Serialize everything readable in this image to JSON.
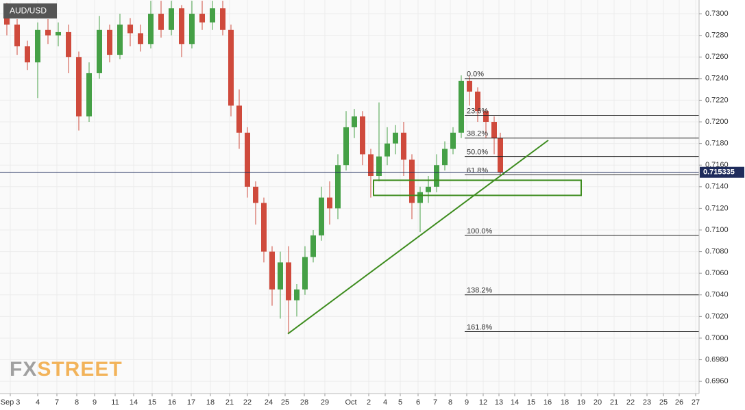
{
  "chart_data": {
    "type": "candlestick",
    "title": "AUD/USD",
    "watermark": [
      "FX",
      "STREET"
    ],
    "xlim": [
      0,
      51
    ],
    "ylim": [
      0.69487,
      0.73127
    ],
    "grid": true,
    "xticks": [
      {
        "value": 0.75,
        "label": "Sep 3"
      },
      {
        "value": 2.75,
        "label": "4"
      },
      {
        "value": 4.15,
        "label": "7"
      },
      {
        "value": 5.6,
        "label": "8"
      },
      {
        "value": 6.9,
        "label": "9"
      },
      {
        "value": 8.4,
        "label": "11"
      },
      {
        "value": 9.75,
        "label": "14"
      },
      {
        "value": 11.1,
        "label": "15"
      },
      {
        "value": 12.55,
        "label": "16"
      },
      {
        "value": 13.95,
        "label": "17"
      },
      {
        "value": 15.35,
        "label": "18"
      },
      {
        "value": 16.75,
        "label": "21"
      },
      {
        "value": 18.05,
        "label": "22"
      },
      {
        "value": 19.6,
        "label": "24"
      },
      {
        "value": 20.8,
        "label": "25"
      },
      {
        "value": 22.2,
        "label": "28"
      },
      {
        "value": 23.7,
        "label": "29"
      },
      {
        "value": 25.6,
        "label": "Oct"
      },
      {
        "value": 26.9,
        "label": "2"
      },
      {
        "value": 28.1,
        "label": "4"
      },
      {
        "value": 29.2,
        "label": "5"
      },
      {
        "value": 30.5,
        "label": "6"
      },
      {
        "value": 31.75,
        "label": "7"
      },
      {
        "value": 32.85,
        "label": "8"
      },
      {
        "value": 34.05,
        "label": "9"
      },
      {
        "value": 35.25,
        "label": "12"
      },
      {
        "value": 36.4,
        "label": "13"
      },
      {
        "value": 37.55,
        "label": "14"
      },
      {
        "value": 38.75,
        "label": "15"
      },
      {
        "value": 39.95,
        "label": "16"
      },
      {
        "value": 41.2,
        "label": "18"
      },
      {
        "value": 42.4,
        "label": "19"
      },
      {
        "value": 43.6,
        "label": "20"
      },
      {
        "value": 44.8,
        "label": "21"
      },
      {
        "value": 46,
        "label": "22"
      },
      {
        "value": 47.2,
        "label": "23"
      },
      {
        "value": 48.4,
        "label": "25"
      },
      {
        "value": 49.55,
        "label": "26"
      },
      {
        "value": 50.75,
        "label": "27"
      }
    ],
    "yticks": [
      {
        "value": 0.696,
        "label": "0.6960"
      },
      {
        "value": 0.698,
        "label": "0.6980"
      },
      {
        "value": 0.7,
        "label": "0.7000"
      },
      {
        "value": 0.702,
        "label": "0.7020"
      },
      {
        "value": 0.704,
        "label": "0.7040"
      },
      {
        "value": 0.706,
        "label": "0.7060"
      },
      {
        "value": 0.708,
        "label": "0.7080"
      },
      {
        "value": 0.71,
        "label": "0.7100"
      },
      {
        "value": 0.712,
        "label": "0.7120"
      },
      {
        "value": 0.714,
        "label": "0.7140"
      },
      {
        "value": 0.716,
        "label": "0.7160"
      },
      {
        "value": 0.718,
        "label": "0.7180"
      },
      {
        "value": 0.72,
        "label": "0.7200"
      },
      {
        "value": 0.722,
        "label": "0.7220"
      },
      {
        "value": 0.724,
        "label": "0.7240"
      },
      {
        "value": 0.726,
        "label": "0.7260"
      },
      {
        "value": 0.728,
        "label": "0.7280"
      },
      {
        "value": 0.73,
        "label": "0.7300"
      }
    ],
    "up_color": "#45a046",
    "down_color": "#cf4a3c",
    "candles": {
      "x": [
        0.5,
        1.25,
        2,
        2.75,
        3.5,
        4.25,
        5,
        5.75,
        6.5,
        7.25,
        8,
        8.75,
        9.5,
        10.25,
        11,
        11.75,
        12.5,
        13.25,
        14,
        14.75,
        15.5,
        16.25,
        16.85,
        17.45,
        18.05,
        18.65,
        19.25,
        19.85,
        20.45,
        21.05,
        21.65,
        22.25,
        22.85,
        23.45,
        24.05,
        24.65,
        25.25,
        25.85,
        26.45,
        27.05,
        27.65,
        28.25,
        28.85,
        29.45,
        30.05,
        30.65,
        31.25,
        31.85,
        32.45,
        33.05,
        33.65,
        34.25,
        34.85,
        35.45,
        36.05,
        36.5
      ],
      "open": [
        0.73,
        0.729,
        0.727,
        0.7255,
        0.7285,
        0.728,
        0.7283,
        0.726,
        0.7205,
        0.7245,
        0.7285,
        0.7262,
        0.729,
        0.7282,
        0.7272,
        0.73,
        0.7285,
        0.7305,
        0.7272,
        0.73,
        0.7292,
        0.7305,
        0.7285,
        0.7215,
        0.719,
        0.714,
        0.7125,
        0.708,
        0.7045,
        0.707,
        0.7035,
        0.7045,
        0.7075,
        0.7095,
        0.713,
        0.712,
        0.716,
        0.7195,
        0.7205,
        0.717,
        0.715,
        0.7168,
        0.718,
        0.719,
        0.7165,
        0.7125,
        0.7135,
        0.714,
        0.716,
        0.7175,
        0.719,
        0.7238,
        0.7228,
        0.721,
        0.72,
        0.7185
      ],
      "high": [
        0.731,
        0.7295,
        0.7275,
        0.7292,
        0.7295,
        0.7292,
        0.729,
        0.7265,
        0.7255,
        0.7298,
        0.729,
        0.73,
        0.7296,
        0.729,
        0.7312,
        0.7312,
        0.7312,
        0.7308,
        0.7312,
        0.7312,
        0.7312,
        0.7312,
        0.729,
        0.723,
        0.7195,
        0.7145,
        0.713,
        0.7085,
        0.708,
        0.7085,
        0.705,
        0.7085,
        0.71,
        0.714,
        0.7145,
        0.717,
        0.721,
        0.7212,
        0.721,
        0.7175,
        0.7218,
        0.7195,
        0.7197,
        0.72,
        0.717,
        0.714,
        0.715,
        0.717,
        0.7182,
        0.7195,
        0.7243,
        0.7242,
        0.7232,
        0.7212,
        0.7205,
        0.719
      ],
      "low": [
        0.728,
        0.7262,
        0.7248,
        0.7222,
        0.7272,
        0.727,
        0.7245,
        0.7192,
        0.72,
        0.724,
        0.7255,
        0.7258,
        0.727,
        0.7265,
        0.7268,
        0.7278,
        0.728,
        0.726,
        0.7268,
        0.7285,
        0.7285,
        0.728,
        0.7205,
        0.7175,
        0.713,
        0.7105,
        0.707,
        0.703,
        0.7018,
        0.7005,
        0.702,
        0.704,
        0.707,
        0.709,
        0.7105,
        0.711,
        0.7155,
        0.7185,
        0.716,
        0.713,
        0.7145,
        0.716,
        0.717,
        0.715,
        0.711,
        0.7098,
        0.7125,
        0.7135,
        0.7155,
        0.717,
        0.7185,
        0.7215,
        0.72,
        0.7185,
        0.717,
        0.715
      ],
      "close": [
        0.729,
        0.727,
        0.7255,
        0.7285,
        0.728,
        0.7283,
        0.726,
        0.7205,
        0.7245,
        0.7285,
        0.7262,
        0.729,
        0.7282,
        0.7272,
        0.73,
        0.7285,
        0.7305,
        0.7272,
        0.73,
        0.7292,
        0.7305,
        0.7285,
        0.7215,
        0.719,
        0.714,
        0.7125,
        0.708,
        0.7045,
        0.707,
        0.7035,
        0.7045,
        0.7075,
        0.7095,
        0.713,
        0.712,
        0.716,
        0.7195,
        0.7205,
        0.717,
        0.715,
        0.7168,
        0.718,
        0.719,
        0.7165,
        0.7125,
        0.7135,
        0.714,
        0.716,
        0.7175,
        0.719,
        0.7238,
        0.7228,
        0.721,
        0.72,
        0.7185,
        0.7153
      ]
    },
    "last_price": 0.715335,
    "fib_start_x": 33.9,
    "fib_levels": [
      {
        "label": "0.0%",
        "price": 0.724
      },
      {
        "label": "23.6%",
        "price": 0.7206
      },
      {
        "label": "38.2%",
        "price": 0.7185
      },
      {
        "label": "50.0%",
        "price": 0.7168
      },
      {
        "label": "61.8%",
        "price": 0.7151
      },
      {
        "label": "100.0%",
        "price": 0.7095
      },
      {
        "label": "138.2%",
        "price": 0.704
      },
      {
        "label": "161.8%",
        "price": 0.7006
      }
    ],
    "trendline": {
      "x": [
        21,
        40
      ],
      "y": [
        0.7004,
        0.7183
      ],
      "color": "#3d8c1e"
    },
    "zone": {
      "x": [
        27.25,
        42.4
      ],
      "y": [
        0.7132,
        0.7146
      ],
      "color": "#3d8c1e"
    }
  }
}
